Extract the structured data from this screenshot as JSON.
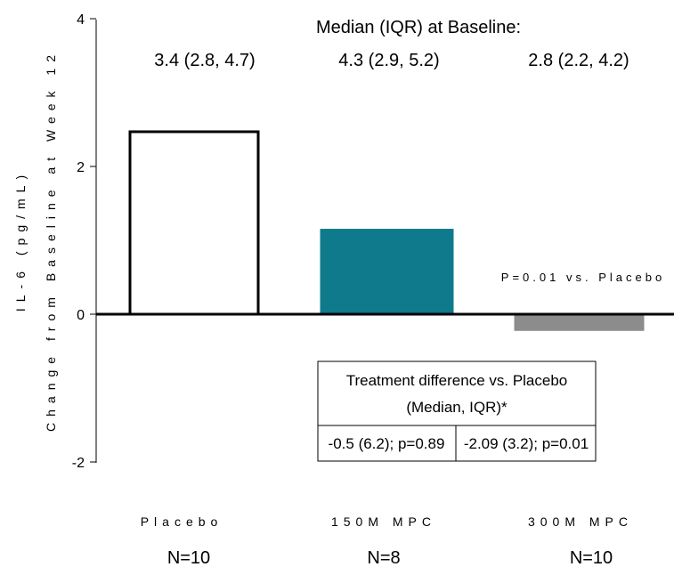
{
  "chart_data": {
    "type": "bar",
    "ylabel_line1": "IL-6 (pg/mL)",
    "ylabel_line2": "Change from Baseline at Week 12",
    "ylim": [
      -2,
      4
    ],
    "yticks": [
      4,
      2,
      0,
      -2
    ],
    "grid": false,
    "categories": [
      "Placebo",
      "150M MPC",
      "300M MPC"
    ],
    "n_labels": [
      "N=10",
      "N=8",
      "N=10"
    ],
    "values": [
      2.47,
      1.15,
      -0.22
    ],
    "colors": [
      "#ffffff",
      "#0e7a8c",
      "#8c8c8c"
    ],
    "outline": [
      "#000000",
      "#0e7a8c",
      "#8c8c8c"
    ],
    "baseline_header": "Median (IQR) at Baseline:",
    "baseline_values": [
      "3.4 (2.8, 4.7)",
      "4.3 (2.9, 5.2)",
      "2.8 (2.2, 4.2)"
    ],
    "annotation": "P=0.01 vs. Placebo",
    "difference_table": {
      "header_line1": "Treatment difference vs. Placebo",
      "header_line2": "(Median, IQR)*",
      "cells": [
        "-0.5 (6.2);  p=0.89",
        "-2.09 (3.2); p=0.01"
      ]
    }
  }
}
